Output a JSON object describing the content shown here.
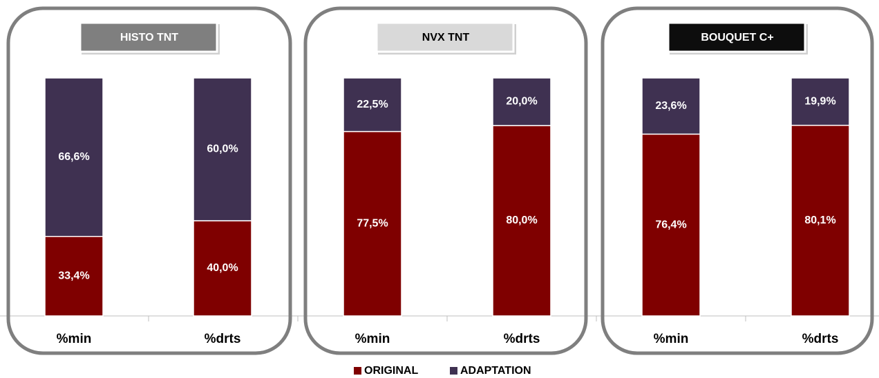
{
  "chart_data": [
    {
      "type": "bar",
      "stacked": true,
      "title": "HISTO TNT",
      "title_background": "#7f7f7f",
      "title_color": "#ffffff",
      "categories": [
        "%min",
        "%drts"
      ],
      "ylim": [
        0,
        100
      ],
      "series": [
        {
          "name": "ORIGINAL",
          "color": "#7f0000",
          "values": [
            33.4,
            40.0
          ],
          "value_labels": [
            "33,4%",
            "40,0%"
          ]
        },
        {
          "name": "ADAPTATION",
          "color": "#3f3151",
          "values": [
            66.6,
            60.0
          ],
          "value_labels": [
            "66,6%",
            "60,0%"
          ]
        }
      ]
    },
    {
      "type": "bar",
      "stacked": true,
      "title": "NVX TNT",
      "title_background": "#d9d9d9",
      "title_color": "#000000",
      "categories": [
        "%min",
        "%drts"
      ],
      "ylim": [
        0,
        100
      ],
      "series": [
        {
          "color": "#7f0000",
          "values": [
            77.5,
            80.0
          ],
          "value_labels": [
            "77,5%",
            "80,0%"
          ]
        },
        {
          "color": "#3f3151",
          "values": [
            22.5,
            20.0
          ],
          "value_labels": [
            "22,5%",
            "20,0%"
          ]
        }
      ]
    },
    {
      "type": "bar",
      "stacked": true,
      "title": "BOUQUET C+",
      "title_background": "#0d0d0d",
      "title_color": "#ffffff",
      "categories": [
        "%min",
        "%drts"
      ],
      "ylim": [
        0,
        100
      ],
      "series": [
        {
          "color": "#7f0000",
          "values": [
            76.4,
            80.1
          ],
          "value_labels": [
            "76,4%",
            "80,1%"
          ]
        },
        {
          "color": "#3f3151",
          "values": [
            23.6,
            19.9
          ],
          "value_labels": [
            "23,6%",
            "19,9%"
          ]
        }
      ]
    }
  ]
}
